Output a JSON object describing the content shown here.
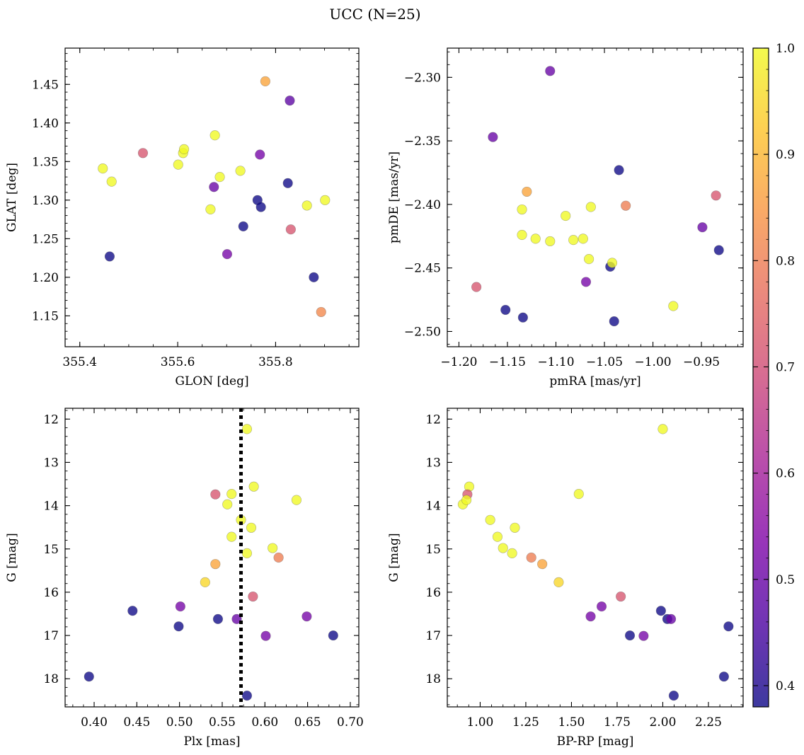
{
  "figure_title": "UCC (N=25)",
  "colorbar": {
    "colormap": "plasma",
    "vmin": 0.38,
    "vmax": 1.0,
    "ticks": [
      0.4,
      0.5,
      0.6,
      0.7,
      0.8,
      0.9,
      1.0
    ],
    "tick_labels": [
      "0.4",
      "0.5",
      "0.6",
      "0.7",
      "0.8",
      "0.9",
      "1.0"
    ]
  },
  "chart_data": [
    {
      "id": "panel-glon-glat",
      "type": "scatter",
      "xlabel": "GLON [deg]",
      "ylabel": "GLAT [deg]",
      "xlim": [
        355.37,
        355.97
      ],
      "ylim": [
        1.11,
        1.497
      ],
      "invert_y": false,
      "xticks": [
        355.4,
        355.6,
        355.8
      ],
      "xtick_labels": [
        "355.4",
        "355.6",
        "355.8"
      ],
      "yticks": [
        1.15,
        1.2,
        1.25,
        1.3,
        1.35,
        1.4,
        1.45
      ],
      "ytick_labels": [
        "1.15",
        "1.20",
        "1.25",
        "1.30",
        "1.35",
        "1.40",
        "1.45"
      ],
      "points": [
        {
          "x": 355.447,
          "y": 1.341,
          "c": 1.0
        },
        {
          "x": 355.465,
          "y": 1.324,
          "c": 1.0
        },
        {
          "x": 355.461,
          "y": 1.227,
          "c": 0.38
        },
        {
          "x": 355.529,
          "y": 1.361,
          "c": 0.72
        },
        {
          "x": 355.601,
          "y": 1.346,
          "c": 1.0
        },
        {
          "x": 355.611,
          "y": 1.361,
          "c": 1.0
        },
        {
          "x": 355.613,
          "y": 1.366,
          "c": 1.0
        },
        {
          "x": 355.667,
          "y": 1.288,
          "c": 1.0
        },
        {
          "x": 355.674,
          "y": 1.317,
          "c": 0.5
        },
        {
          "x": 355.676,
          "y": 1.384,
          "c": 1.0
        },
        {
          "x": 355.686,
          "y": 1.33,
          "c": 1.0
        },
        {
          "x": 355.701,
          "y": 1.23,
          "c": 0.52
        },
        {
          "x": 355.728,
          "y": 1.338,
          "c": 1.0
        },
        {
          "x": 355.734,
          "y": 1.266,
          "c": 0.38
        },
        {
          "x": 355.763,
          "y": 1.3,
          "c": 0.38
        },
        {
          "x": 355.768,
          "y": 1.359,
          "c": 0.52
        },
        {
          "x": 355.77,
          "y": 1.291,
          "c": 0.38
        },
        {
          "x": 355.779,
          "y": 1.454,
          "c": 0.87
        },
        {
          "x": 355.825,
          "y": 1.322,
          "c": 0.38
        },
        {
          "x": 355.829,
          "y": 1.429,
          "c": 0.48
        },
        {
          "x": 355.831,
          "y": 1.262,
          "c": 0.72
        },
        {
          "x": 355.864,
          "y": 1.293,
          "c": 1.0
        },
        {
          "x": 355.878,
          "y": 1.2,
          "c": 0.38
        },
        {
          "x": 355.893,
          "y": 1.155,
          "c": 0.82
        },
        {
          "x": 355.901,
          "y": 1.3,
          "c": 1.0
        }
      ]
    },
    {
      "id": "panel-pmra-pmde",
      "type": "scatter",
      "xlabel": "pmRA [mas/yr]",
      "ylabel": "pmDE [mas/yr]",
      "xlim": [
        -1.212,
        -0.907
      ],
      "ylim": [
        -2.512,
        -2.277
      ],
      "invert_y": false,
      "xticks": [
        -1.2,
        -1.15,
        -1.1,
        -1.05,
        -1.0,
        -0.95
      ],
      "xtick_labels": [
        "−1.20",
        "−1.15",
        "−1.10",
        "−1.05",
        "−1.00",
        "−0.95"
      ],
      "yticks": [
        -2.5,
        -2.45,
        -2.4,
        -2.35,
        -2.3
      ],
      "ytick_labels": [
        "−2.50",
        "−2.45",
        "−2.40",
        "−2.35",
        "−2.30"
      ],
      "points": [
        {
          "x": -1.106,
          "y": -2.295,
          "c": 0.5
        },
        {
          "x": -1.165,
          "y": -2.347,
          "c": 0.5
        },
        {
          "x": -1.035,
          "y": -2.373,
          "c": 0.38
        },
        {
          "x": -1.13,
          "y": -2.39,
          "c": 0.87
        },
        {
          "x": -1.135,
          "y": -2.404,
          "c": 1.0
        },
        {
          "x": -1.09,
          "y": -2.409,
          "c": 1.0
        },
        {
          "x": -1.064,
          "y": -2.402,
          "c": 1.0
        },
        {
          "x": -1.028,
          "y": -2.401,
          "c": 0.8
        },
        {
          "x": -0.935,
          "y": -2.393,
          "c": 0.72
        },
        {
          "x": -0.949,
          "y": -2.418,
          "c": 0.5
        },
        {
          "x": -0.932,
          "y": -2.436,
          "c": 0.38
        },
        {
          "x": -1.135,
          "y": -2.424,
          "c": 1.0
        },
        {
          "x": -1.121,
          "y": -2.427,
          "c": 1.0
        },
        {
          "x": -1.106,
          "y": -2.429,
          "c": 1.0
        },
        {
          "x": -1.082,
          "y": -2.428,
          "c": 1.0
        },
        {
          "x": -1.072,
          "y": -2.427,
          "c": 1.0
        },
        {
          "x": -1.066,
          "y": -2.443,
          "c": 1.0
        },
        {
          "x": -1.044,
          "y": -2.449,
          "c": 0.38
        },
        {
          "x": -1.042,
          "y": -2.446,
          "c": 1.0
        },
        {
          "x": -1.069,
          "y": -2.461,
          "c": 0.52
        },
        {
          "x": -1.182,
          "y": -2.465,
          "c": 0.72
        },
        {
          "x": -1.152,
          "y": -2.483,
          "c": 0.38
        },
        {
          "x": -1.134,
          "y": -2.489,
          "c": 0.38
        },
        {
          "x": -1.04,
          "y": -2.492,
          "c": 0.38
        },
        {
          "x": -0.979,
          "y": -2.48,
          "c": 1.0
        }
      ]
    },
    {
      "id": "panel-plx-g",
      "type": "scatter",
      "xlabel": "Plx [mas]",
      "ylabel": "G [mag]",
      "xlim": [
        0.366,
        0.71
      ],
      "ylim": [
        11.75,
        18.65
      ],
      "invert_y": true,
      "vline": {
        "x": 0.572,
        "style": "dotted"
      },
      "xticks": [
        0.4,
        0.45,
        0.5,
        0.55,
        0.6,
        0.65,
        0.7
      ],
      "xtick_labels": [
        "0.40",
        "0.45",
        "0.50",
        "0.55",
        "0.60",
        "0.65",
        "0.70"
      ],
      "yticks": [
        12,
        13,
        14,
        15,
        16,
        17,
        18
      ],
      "ytick_labels": [
        "12",
        "13",
        "14",
        "15",
        "16",
        "17",
        "18"
      ],
      "points": [
        {
          "x": 0.579,
          "y": 12.23,
          "c": 1.0
        },
        {
          "x": 0.587,
          "y": 13.56,
          "c": 1.0
        },
        {
          "x": 0.542,
          "y": 13.74,
          "c": 0.72
        },
        {
          "x": 0.561,
          "y": 13.73,
          "c": 1.0
        },
        {
          "x": 0.556,
          "y": 13.97,
          "c": 1.0
        },
        {
          "x": 0.637,
          "y": 13.87,
          "c": 1.0
        },
        {
          "x": 0.572,
          "y": 14.33,
          "c": 1.0
        },
        {
          "x": 0.584,
          "y": 14.51,
          "c": 1.0
        },
        {
          "x": 0.561,
          "y": 14.72,
          "c": 1.0
        },
        {
          "x": 0.609,
          "y": 14.98,
          "c": 1.0
        },
        {
          "x": 0.579,
          "y": 15.1,
          "c": 1.0
        },
        {
          "x": 0.616,
          "y": 15.2,
          "c": 0.8
        },
        {
          "x": 0.542,
          "y": 15.35,
          "c": 0.87
        },
        {
          "x": 0.53,
          "y": 15.77,
          "c": 0.95
        },
        {
          "x": 0.586,
          "y": 16.1,
          "c": 0.72
        },
        {
          "x": 0.501,
          "y": 16.33,
          "c": 0.52
        },
        {
          "x": 0.445,
          "y": 16.43,
          "c": 0.38
        },
        {
          "x": 0.649,
          "y": 16.56,
          "c": 0.52
        },
        {
          "x": 0.545,
          "y": 16.62,
          "c": 0.38
        },
        {
          "x": 0.567,
          "y": 16.62,
          "c": 0.5
        },
        {
          "x": 0.499,
          "y": 16.79,
          "c": 0.38
        },
        {
          "x": 0.601,
          "y": 17.01,
          "c": 0.52
        },
        {
          "x": 0.68,
          "y": 17.0,
          "c": 0.38
        },
        {
          "x": 0.394,
          "y": 17.95,
          "c": 0.38
        },
        {
          "x": 0.579,
          "y": 18.39,
          "c": 0.38
        }
      ]
    },
    {
      "id": "panel-bprp-g",
      "type": "scatter",
      "xlabel": "BP-RP [mag]",
      "ylabel": "G [mag]",
      "xlim": [
        0.82,
        2.44
      ],
      "ylim": [
        11.75,
        18.65
      ],
      "invert_y": true,
      "xticks": [
        1.0,
        1.25,
        1.5,
        1.75,
        2.0,
        2.25
      ],
      "xtick_labels": [
        "1.00",
        "1.25",
        "1.50",
        "1.75",
        "2.00",
        "2.25"
      ],
      "yticks": [
        12,
        13,
        14,
        15,
        16,
        17,
        18
      ],
      "ytick_labels": [
        "12",
        "13",
        "14",
        "15",
        "16",
        "17",
        "18"
      ],
      "points": [
        {
          "x": 2.0,
          "y": 12.23,
          "c": 1.0
        },
        {
          "x": 0.94,
          "y": 13.56,
          "c": 1.0
        },
        {
          "x": 0.93,
          "y": 13.74,
          "c": 0.72
        },
        {
          "x": 1.54,
          "y": 13.73,
          "c": 1.0
        },
        {
          "x": 0.905,
          "y": 13.97,
          "c": 1.0
        },
        {
          "x": 0.925,
          "y": 13.87,
          "c": 1.0
        },
        {
          "x": 1.055,
          "y": 14.33,
          "c": 1.0
        },
        {
          "x": 1.19,
          "y": 14.51,
          "c": 1.0
        },
        {
          "x": 1.095,
          "y": 14.72,
          "c": 1.0
        },
        {
          "x": 1.125,
          "y": 14.98,
          "c": 1.0
        },
        {
          "x": 1.175,
          "y": 15.1,
          "c": 1.0
        },
        {
          "x": 1.28,
          "y": 15.2,
          "c": 0.8
        },
        {
          "x": 1.34,
          "y": 15.35,
          "c": 0.87
        },
        {
          "x": 1.43,
          "y": 15.77,
          "c": 0.95
        },
        {
          "x": 1.77,
          "y": 16.1,
          "c": 0.72
        },
        {
          "x": 1.665,
          "y": 16.33,
          "c": 0.52
        },
        {
          "x": 1.99,
          "y": 16.43,
          "c": 0.38
        },
        {
          "x": 1.605,
          "y": 16.56,
          "c": 0.52
        },
        {
          "x": 2.025,
          "y": 16.62,
          "c": 0.38
        },
        {
          "x": 2.045,
          "y": 16.62,
          "c": 0.5
        },
        {
          "x": 2.36,
          "y": 16.79,
          "c": 0.38
        },
        {
          "x": 1.895,
          "y": 17.01,
          "c": 0.52
        },
        {
          "x": 1.82,
          "y": 17.0,
          "c": 0.38
        },
        {
          "x": 2.335,
          "y": 17.95,
          "c": 0.38
        },
        {
          "x": 2.06,
          "y": 18.39,
          "c": 0.38
        }
      ]
    }
  ]
}
